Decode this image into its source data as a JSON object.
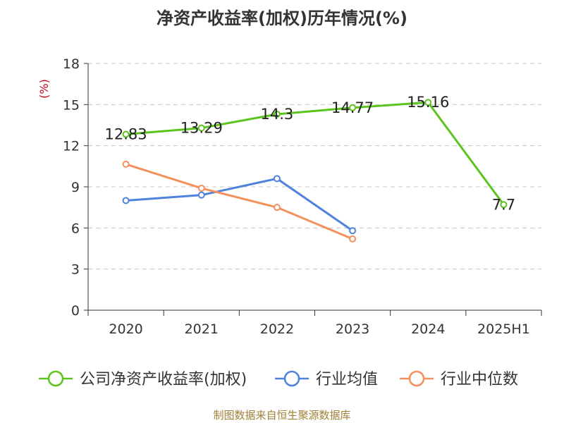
{
  "chart_title": "净资产收益率(加权)历年情况(%)",
  "footer_note": "制图数据来自恒生聚源数据库",
  "chart_data": {
    "type": "line",
    "title": "净资产收益率(加权)历年情况(%)",
    "ylabel": "(%)",
    "xlabel": "",
    "categories": [
      "2020",
      "2021",
      "2022",
      "2023",
      "2024",
      "2025H1"
    ],
    "ylim": [
      0,
      18
    ],
    "yticks": [
      0,
      3,
      6,
      9,
      12,
      15,
      18
    ],
    "grid": true,
    "legend_position": "bottom",
    "series": [
      {
        "name": "公司净资产收益率(加权)",
        "color": "#5cc41c",
        "values": [
          12.83,
          13.29,
          14.3,
          14.77,
          15.16,
          7.7
        ],
        "data_labels": [
          "12.83",
          "13.29",
          "14.3",
          "14.77",
          "15.16",
          "7.7"
        ]
      },
      {
        "name": "行业均值",
        "color": "#4f82db",
        "values": [
          8.0,
          8.4,
          9.6,
          5.8,
          null,
          null
        ]
      },
      {
        "name": "行业中位数",
        "color": "#f4905c",
        "values": [
          10.65,
          8.9,
          7.5,
          5.2,
          null,
          null
        ]
      }
    ],
    "unit_color": "#d0021b"
  }
}
